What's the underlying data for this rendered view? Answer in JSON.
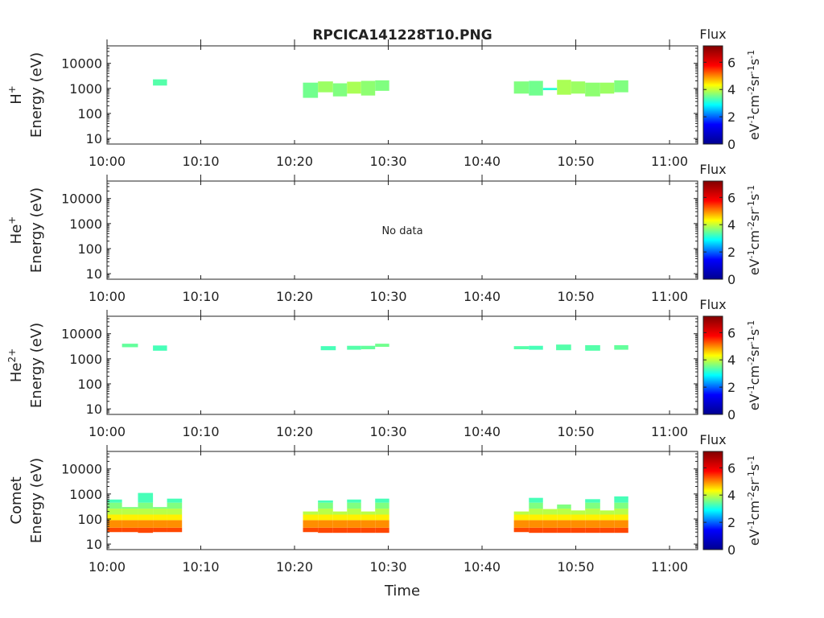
{
  "title": "RPCICA141228T10.PNG",
  "xlabel": "Time",
  "x_tick_labels": [
    "10:00",
    "10:10",
    "10:20",
    "10:30",
    "10:40",
    "10:50",
    "11:00"
  ],
  "y_tick_labels": [
    "10",
    "100",
    "1000",
    "10000"
  ],
  "colorbar": {
    "title": "Flux",
    "label": "eV-1cm-2sr-1s-1",
    "ticks": [
      "0",
      "2",
      "4",
      "6"
    ],
    "range": [
      0,
      7.2
    ],
    "colormap": [
      "#00008f",
      "#0000ff",
      "#00ffff",
      "#ffff00",
      "#ff0000",
      "#800000"
    ]
  },
  "chart_data": [
    {
      "type": "heatmap",
      "panel_label": "H+",
      "ylabel": "Energy (eV)",
      "xlim_minutes_after_10": [
        0,
        63
      ],
      "ylim_eV": [
        6,
        50000
      ],
      "yscale": "log",
      "message": "",
      "blocks": [
        {
          "t": [
            4.9,
            6.4
          ],
          "e": [
            1300,
            2300
          ],
          "flux": 3.3
        },
        {
          "t": [
            20.9,
            22.5
          ],
          "e": [
            420,
            1700
          ],
          "flux": 3.5
        },
        {
          "t": [
            22.5,
            24.1
          ],
          "e": [
            700,
            1900
          ],
          "flux": 3.8
        },
        {
          "t": [
            24.1,
            25.6
          ],
          "e": [
            480,
            1600
          ],
          "flux": 3.6
        },
        {
          "t": [
            25.6,
            27.1
          ],
          "e": [
            620,
            1850
          ],
          "flux": 3.9
        },
        {
          "t": [
            27.1,
            28.6
          ],
          "e": [
            520,
            2000
          ],
          "flux": 3.7
        },
        {
          "t": [
            28.6,
            30.1
          ],
          "e": [
            800,
            2100
          ],
          "flux": 3.6
        },
        {
          "t": [
            43.4,
            45.0
          ],
          "e": [
            620,
            1900
          ],
          "flux": 3.6
        },
        {
          "t": [
            45.0,
            46.5
          ],
          "e": [
            520,
            2000
          ],
          "flux": 3.5
        },
        {
          "t": [
            46.5,
            48.0
          ],
          "e": [
            850,
            1050
          ],
          "flux": 3.0
        },
        {
          "t": [
            48.0,
            49.5
          ],
          "e": [
            560,
            2200
          ],
          "flux": 3.9
        },
        {
          "t": [
            49.5,
            51.0
          ],
          "e": [
            620,
            1900
          ],
          "flux": 3.8
        },
        {
          "t": [
            51.0,
            52.6
          ],
          "e": [
            480,
            1700
          ],
          "flux": 3.7
        },
        {
          "t": [
            52.6,
            54.1
          ],
          "e": [
            620,
            1700
          ],
          "flux": 3.8
        },
        {
          "t": [
            54.1,
            55.6
          ],
          "e": [
            700,
            2100
          ],
          "flux": 3.6
        }
      ]
    },
    {
      "type": "heatmap",
      "panel_label": "He+",
      "ylabel": "Energy (eV)",
      "xlim_minutes_after_10": [
        0,
        63
      ],
      "ylim_eV": [
        6,
        50000
      ],
      "yscale": "log",
      "message": "No data",
      "blocks": []
    },
    {
      "type": "heatmap",
      "panel_label": "He2+",
      "ylabel": "Energy (eV)",
      "xlim_minutes_after_10": [
        0,
        63
      ],
      "ylim_eV": [
        6,
        50000
      ],
      "yscale": "log",
      "message": "",
      "blocks": [
        {
          "t": [
            1.6,
            3.3
          ],
          "e": [
            2900,
            4000
          ],
          "flux": 3.4
        },
        {
          "t": [
            4.9,
            6.4
          ],
          "e": [
            2100,
            3400
          ],
          "flux": 3.2
        },
        {
          "t": [
            22.8,
            24.4
          ],
          "e": [
            2200,
            3200
          ],
          "flux": 3.2
        },
        {
          "t": [
            25.6,
            27.1
          ],
          "e": [
            2300,
            3300
          ],
          "flux": 3.3
        },
        {
          "t": [
            27.1,
            28.6
          ],
          "e": [
            2400,
            3300
          ],
          "flux": 3.4
        },
        {
          "t": [
            28.6,
            30.1
          ],
          "e": [
            3000,
            4000
          ],
          "flux": 3.5
        },
        {
          "t": [
            43.4,
            45.0
          ],
          "e": [
            2400,
            3200
          ],
          "flux": 3.3
        },
        {
          "t": [
            45.0,
            46.5
          ],
          "e": [
            2300,
            3300
          ],
          "flux": 3.2
        },
        {
          "t": [
            47.9,
            49.5
          ],
          "e": [
            2200,
            3700
          ],
          "flux": 3.3
        },
        {
          "t": [
            51.0,
            52.6
          ],
          "e": [
            2100,
            3500
          ],
          "flux": 3.3
        },
        {
          "t": [
            54.1,
            55.6
          ],
          "e": [
            2300,
            3500
          ],
          "flux": 3.4
        }
      ]
    },
    {
      "type": "heatmap",
      "panel_label": "Comet",
      "ylabel": "Energy (eV)",
      "xlim_minutes_after_10": [
        0,
        63
      ],
      "ylim_eV": [
        6,
        50000
      ],
      "yscale": "log",
      "message": "",
      "columns": [
        {
          "t": [
            0.0,
            1.6
          ],
          "e_min": 30,
          "e_max": 600
        },
        {
          "t": [
            1.6,
            3.3
          ],
          "e_min": 30,
          "e_max": 300
        },
        {
          "t": [
            3.3,
            4.9
          ],
          "e_min": 28,
          "e_max": 1100
        },
        {
          "t": [
            4.9,
            6.4
          ],
          "e_min": 30,
          "e_max": 300
        },
        {
          "t": [
            6.4,
            8.0
          ],
          "e_min": 30,
          "e_max": 650
        },
        {
          "t": [
            20.9,
            22.5
          ],
          "e_min": 30,
          "e_max": 200
        },
        {
          "t": [
            22.5,
            24.1
          ],
          "e_min": 28,
          "e_max": 550
        },
        {
          "t": [
            24.1,
            25.6
          ],
          "e_min": 28,
          "e_max": 200
        },
        {
          "t": [
            25.6,
            27.1
          ],
          "e_min": 28,
          "e_max": 600
        },
        {
          "t": [
            27.1,
            28.6
          ],
          "e_min": 28,
          "e_max": 200
        },
        {
          "t": [
            28.6,
            30.1
          ],
          "e_min": 28,
          "e_max": 650
        },
        {
          "t": [
            43.4,
            45.0
          ],
          "e_min": 30,
          "e_max": 200
        },
        {
          "t": [
            45.0,
            46.5
          ],
          "e_min": 28,
          "e_max": 700
        },
        {
          "t": [
            46.5,
            48.0
          ],
          "e_min": 28,
          "e_max": 250
        },
        {
          "t": [
            48.0,
            49.5
          ],
          "e_min": 28,
          "e_max": 380
        },
        {
          "t": [
            49.5,
            51.0
          ],
          "e_min": 28,
          "e_max": 220
        },
        {
          "t": [
            51.0,
            52.6
          ],
          "e_min": 28,
          "e_max": 620
        },
        {
          "t": [
            52.6,
            54.1
          ],
          "e_min": 28,
          "e_max": 220
        },
        {
          "t": [
            54.1,
            55.6
          ],
          "e_min": 28,
          "e_max": 800
        }
      ],
      "spectrum_flux_levels": [
        {
          "e": [
            28,
            45
          ],
          "flux": 5.8
        },
        {
          "e": [
            45,
            90
          ],
          "flux": 5.3
        },
        {
          "e": [
            90,
            150
          ],
          "flux": 4.6
        },
        {
          "e": [
            150,
            260
          ],
          "flux": 4.0
        },
        {
          "e": [
            260,
            450
          ],
          "flux": 3.6
        },
        {
          "e": [
            450,
            1200
          ],
          "flux": 3.2
        }
      ]
    }
  ]
}
